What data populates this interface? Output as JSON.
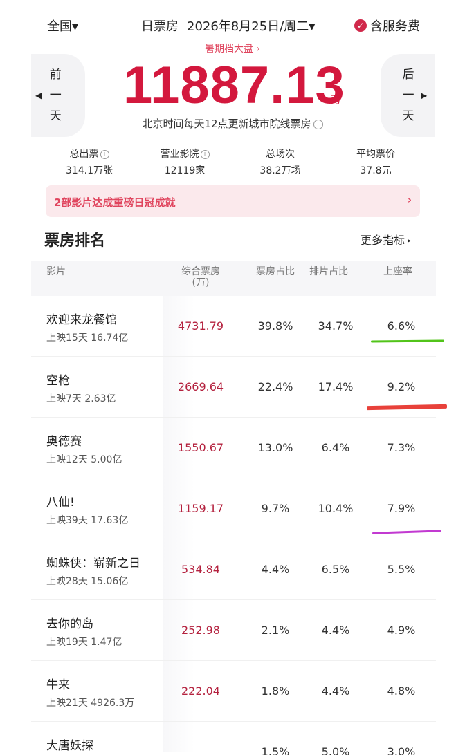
{
  "header": {
    "region": "全国",
    "region_caret": "▾",
    "mode": "日票房",
    "date": "2026年8月25日/周二",
    "date_caret": "▾",
    "fee_check": "✓",
    "fee_label": "含服务费"
  },
  "subtitle": "暑期档大盘 ›",
  "prev_day": {
    "arrow": "◀",
    "c1": "前",
    "c2": "一",
    "c3": "天"
  },
  "next_day": {
    "arrow": "▶",
    "c1": "后",
    "c2": "一",
    "c3": "天"
  },
  "total": {
    "value": "11887.13",
    "unit": "万"
  },
  "update_note": "北京时间每天12点更新城市院线票房",
  "info_glyph": "i",
  "stats": [
    {
      "label": "总出票",
      "value": "314.1万张",
      "info": true
    },
    {
      "label": "营业影院",
      "value": "12119家",
      "info": true
    },
    {
      "label": "总场次",
      "value": "38.2万场",
      "info": false
    },
    {
      "label": "平均票价",
      "value": "37.8元",
      "info": false
    }
  ],
  "banner": {
    "text": "2部影片达成重磅日冠成就",
    "chevron": "›"
  },
  "section": {
    "title": "票房排名",
    "more": "更多指标",
    "more_caret": "▸"
  },
  "table": {
    "headers": {
      "film": "影片",
      "box_office": "综合票房",
      "box_office_unit": "(万)",
      "bo_share": "票房占比",
      "show_share": "排片占比",
      "occupancy": "上座率"
    },
    "rows": [
      {
        "title": "欢迎来龙餐馆",
        "meta": "上映15天  16.74亿",
        "bo": "4731.79",
        "bo_share": "39.8%",
        "show_share": "34.7%",
        "occupancy": "6.6%"
      },
      {
        "title": "空枪",
        "meta": "上映7天  2.63亿",
        "bo": "2669.64",
        "bo_share": "22.4%",
        "show_share": "17.4%",
        "occupancy": "9.2%"
      },
      {
        "title": "奥德赛",
        "meta": "上映12天  5.00亿",
        "bo": "1550.67",
        "bo_share": "13.0%",
        "show_share": "6.4%",
        "occupancy": "7.3%"
      },
      {
        "title": "八仙!",
        "meta": "上映39天  17.63亿",
        "bo": "1159.17",
        "bo_share": "9.7%",
        "show_share": "10.4%",
        "occupancy": "7.9%"
      },
      {
        "title": "蜘蛛侠：崭新之日",
        "meta": "上映28天  15.06亿",
        "bo": "534.84",
        "bo_share": "4.4%",
        "show_share": "6.5%",
        "occupancy": "5.5%"
      },
      {
        "title": "去你的岛",
        "meta": "上映19天  1.47亿",
        "bo": "252.98",
        "bo_share": "2.1%",
        "show_share": "4.4%",
        "occupancy": "4.9%"
      },
      {
        "title": "牛来",
        "meta": "上映21天  4926.3万",
        "bo": "222.04",
        "bo_share": "1.8%",
        "show_share": "4.4%",
        "occupancy": "4.8%"
      },
      {
        "title": "大唐妖探",
        "meta": "",
        "bo": "",
        "bo_share": "1.5%",
        "show_share": "5.0%",
        "occupancy": "3.0%"
      }
    ]
  },
  "colors": {
    "accent_red": "#d3183d",
    "banner_bg": "#fbe9ec",
    "mark_green": "#52c41a",
    "mark_red": "#e8413a",
    "mark_magenta": "#c23ad1"
  }
}
